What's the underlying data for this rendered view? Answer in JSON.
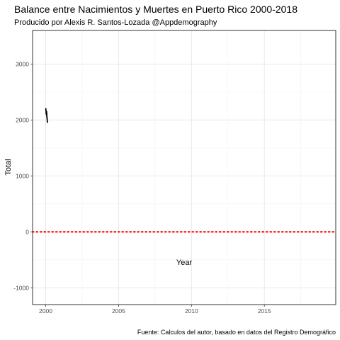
{
  "chart_data": {
    "type": "line",
    "title": "Balance entre Nacimientos y Muertes en Puerto Rico 2000-2018",
    "subtitle": "Producido por Alexis R. Santos-Lozada @Appdemography",
    "caption": "Fuente: Calculos del autor, basado en datos del Registro Demográfico",
    "xlabel": "Year",
    "ylabel": "Total",
    "xlim": [
      1999.1,
      2019.9
    ],
    "ylim": [
      -1300,
      3600
    ],
    "xticks": [
      2000,
      2005,
      2010,
      2015
    ],
    "xtick_labels": [
      "2000",
      "2005",
      "2010",
      "2015"
    ],
    "yticks": [
      -1000,
      0,
      1000,
      2000,
      3000
    ],
    "ytick_labels": [
      "-1000",
      "0",
      "1000",
      "2000",
      "3000"
    ],
    "grid": true,
    "reference_line": {
      "y": 0,
      "style": "dotted",
      "color": "#ff0000"
    },
    "series": [
      {
        "name": "Total",
        "color": "#000000",
        "x": [
          2000.0,
          2000.02,
          2000.04,
          2000.06,
          2000.08,
          2000.1,
          2000.12
        ],
        "y": [
          2210,
          2170,
          2100,
          2150,
          2060,
          2020,
          1950
        ]
      }
    ]
  }
}
